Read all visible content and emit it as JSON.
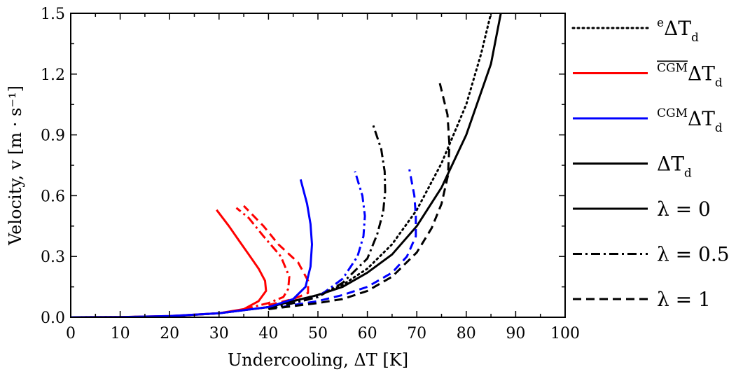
{
  "chart_data": {
    "type": "line",
    "xlabel": "Undercooling, ΔT [K]",
    "ylabel": "Velocity, v [m · s⁻¹]",
    "xlim": [
      0,
      100
    ],
    "ylim": [
      0,
      1.5
    ],
    "xticks": [
      0,
      10,
      20,
      30,
      40,
      50,
      60,
      70,
      80,
      90,
      100
    ],
    "yticks": [
      0.0,
      0.3,
      0.6,
      0.9,
      1.2,
      1.5
    ],
    "xtick_labels": [
      "0",
      "10",
      "20",
      "30",
      "40",
      "50",
      "60",
      "70",
      "80",
      "90",
      "100"
    ],
    "ytick_labels": [
      "0.0",
      "0.3",
      "0.6",
      "0.9",
      "1.2",
      "1.5"
    ],
    "grid": false,
    "legend_position": "right, outside plot",
    "legend": [
      {
        "sup": "e",
        "label": "ΔT",
        "sub": "d",
        "color": "#000000",
        "dash": "dotted"
      },
      {
        "sup": "CGM",
        "overline": true,
        "label": "ΔT",
        "sub": "d",
        "color": "#ff0000",
        "dash": "solid"
      },
      {
        "sup": "CGM",
        "label": "ΔT",
        "sub": "d",
        "color": "#0000ff",
        "dash": "solid"
      },
      {
        "sup": "",
        "label": "ΔT",
        "sub": "d",
        "color": "#000000",
        "dash": "solid"
      },
      {
        "sup": "",
        "label": "λ = 0",
        "sub": "",
        "color": "#000000",
        "dash": "solid"
      },
      {
        "sup": "",
        "label": "λ = 0.5",
        "sub": "",
        "color": "#000000",
        "dash": "dashdot"
      },
      {
        "sup": "",
        "label": "λ = 1",
        "sub": "",
        "color": "#000000",
        "dash": "dashed"
      }
    ],
    "series": [
      {
        "color": "#000000",
        "dash": "dotted",
        "points": [
          [
            0,
            0
          ],
          [
            10,
            0.001
          ],
          [
            20,
            0.005
          ],
          [
            30,
            0.02
          ],
          [
            40,
            0.05
          ],
          [
            50,
            0.11
          ],
          [
            55,
            0.16
          ],
          [
            60,
            0.24
          ],
          [
            65,
            0.36
          ],
          [
            70,
            0.53
          ],
          [
            75,
            0.76
          ],
          [
            80,
            1.05
          ],
          [
            83,
            1.3
          ],
          [
            85,
            1.5
          ]
        ]
      },
      {
        "color": "#000000",
        "dash": "solid",
        "points": [
          [
            0,
            0
          ],
          [
            10,
            0.001
          ],
          [
            20,
            0.005
          ],
          [
            30,
            0.02
          ],
          [
            40,
            0.05
          ],
          [
            50,
            0.11
          ],
          [
            55,
            0.15
          ],
          [
            60,
            0.22
          ],
          [
            65,
            0.31
          ],
          [
            70,
            0.45
          ],
          [
            75,
            0.64
          ],
          [
            80,
            0.9
          ],
          [
            85,
            1.25
          ],
          [
            87,
            1.5
          ]
        ]
      },
      {
        "color": "#ff0000",
        "dash": "solid",
        "points": [
          [
            0,
            0
          ],
          [
            10,
            0.001
          ],
          [
            20,
            0.006
          ],
          [
            30,
            0.02
          ],
          [
            35,
            0.04
          ],
          [
            38,
            0.08
          ],
          [
            39.5,
            0.13
          ],
          [
            39.3,
            0.18
          ],
          [
            38,
            0.24
          ],
          [
            36,
            0.31
          ],
          [
            34,
            0.38
          ],
          [
            32,
            0.45
          ],
          [
            29.5,
            0.53
          ]
        ]
      },
      {
        "color": "#ff0000",
        "dash": "dashdot",
        "points": [
          [
            35,
            0.04
          ],
          [
            40,
            0.07
          ],
          [
            43,
            0.1
          ],
          [
            44,
            0.14
          ],
          [
            44.2,
            0.2
          ],
          [
            42.5,
            0.3
          ],
          [
            39,
            0.4
          ],
          [
            36,
            0.49
          ],
          [
            33.5,
            0.54
          ]
        ]
      },
      {
        "color": "#ff0000",
        "dash": "dashed",
        "points": [
          [
            40,
            0.06
          ],
          [
            45,
            0.09
          ],
          [
            48,
            0.12
          ],
          [
            48,
            0.18
          ],
          [
            46,
            0.27
          ],
          [
            42,
            0.36
          ],
          [
            39,
            0.45
          ],
          [
            35,
            0.55
          ]
        ]
      },
      {
        "color": "#0000ff",
        "dash": "solid",
        "points": [
          [
            0,
            0
          ],
          [
            10,
            0.001
          ],
          [
            20,
            0.006
          ],
          [
            30,
            0.02
          ],
          [
            40,
            0.05
          ],
          [
            45,
            0.09
          ],
          [
            47.5,
            0.15
          ],
          [
            48.5,
            0.25
          ],
          [
            48.8,
            0.36
          ],
          [
            48.5,
            0.46
          ],
          [
            47.8,
            0.56
          ],
          [
            46.5,
            0.68
          ]
        ]
      },
      {
        "color": "#0000ff",
        "dash": "dashdot",
        "points": [
          [
            40,
            0.04
          ],
          [
            50,
            0.1
          ],
          [
            55,
            0.19
          ],
          [
            58,
            0.3
          ],
          [
            59.2,
            0.4
          ],
          [
            59.5,
            0.5
          ],
          [
            59,
            0.6
          ],
          [
            57.5,
            0.72
          ]
        ]
      },
      {
        "color": "#0000ff",
        "dash": "dashed",
        "points": [
          [
            40,
            0.04
          ],
          [
            50,
            0.08
          ],
          [
            55,
            0.11
          ],
          [
            60,
            0.15
          ],
          [
            65,
            0.22
          ],
          [
            68,
            0.3
          ],
          [
            69.8,
            0.4
          ],
          [
            69.8,
            0.5
          ],
          [
            69.5,
            0.6
          ],
          [
            68.5,
            0.73
          ]
        ]
      },
      {
        "color": "#000000",
        "dash": "dashdot",
        "points": [
          [
            40,
            0.04
          ],
          [
            50,
            0.1
          ],
          [
            55,
            0.17
          ],
          [
            60,
            0.29
          ],
          [
            62,
            0.41
          ],
          [
            63.2,
            0.52
          ],
          [
            63.6,
            0.62
          ],
          [
            63.5,
            0.72
          ],
          [
            62.8,
            0.83
          ],
          [
            61,
            0.96
          ]
        ]
      },
      {
        "color": "#000000",
        "dash": "dashed",
        "points": [
          [
            40,
            0.04
          ],
          [
            50,
            0.07
          ],
          [
            55,
            0.09
          ],
          [
            60,
            0.13
          ],
          [
            65,
            0.2
          ],
          [
            70,
            0.32
          ],
          [
            73,
            0.44
          ],
          [
            75,
            0.56
          ],
          [
            76.3,
            0.7
          ],
          [
            76.6,
            0.85
          ],
          [
            76.2,
            1.0
          ],
          [
            74.5,
            1.17
          ]
        ]
      }
    ]
  }
}
